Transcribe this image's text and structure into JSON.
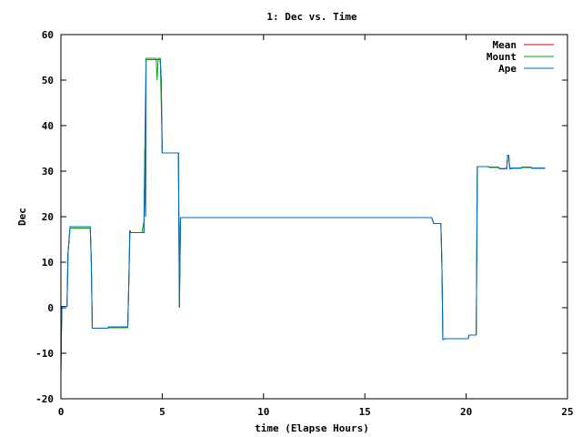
{
  "chart_data": {
    "type": "line",
    "title": "1: Dec vs. Time",
    "xlabel": "time (Elapse Hours)",
    "ylabel": "Dec",
    "xlim": [
      0,
      25
    ],
    "ylim": [
      -20,
      60
    ],
    "xticks": [
      0,
      5,
      10,
      15,
      20,
      25
    ],
    "yticks": [
      -20,
      -10,
      0,
      10,
      20,
      30,
      40,
      50,
      60
    ],
    "grid": false,
    "legend_position": "top-right",
    "series": [
      {
        "name": "Mean",
        "color": "#cc0000",
        "x": [
          0.0,
          0.02,
          0.05,
          0.1,
          0.3,
          0.35,
          0.45,
          1.45,
          1.5,
          1.55,
          2.3,
          2.35,
          3.3,
          3.35,
          3.4,
          3.45,
          3.6,
          4.1,
          4.15,
          4.18,
          4.2,
          4.9,
          4.95,
          5.0,
          5.8,
          5.85,
          5.9,
          5.95,
          18.3,
          18.4,
          18.75,
          18.8,
          18.85,
          18.95,
          20.1,
          20.15,
          20.5,
          20.55,
          21.1,
          21.15,
          21.6,
          21.65,
          22.0,
          22.05,
          22.1,
          22.15,
          22.2,
          22.25,
          22.7,
          22.75,
          23.2,
          23.25,
          23.9
        ],
        "y": [
          -14,
          -7,
          0.3,
          0.3,
          0.3,
          12,
          17.5,
          17.5,
          10,
          -4.5,
          -4.5,
          -4.3,
          -4.3,
          5,
          17,
          16.5,
          16.5,
          16.5,
          35,
          20,
          54.5,
          54.5,
          50,
          34,
          34,
          0,
          19.8,
          19.8,
          19.8,
          18.5,
          18.5,
          10,
          -7,
          -6.8,
          -6.8,
          -6,
          -6,
          31,
          31,
          30.8,
          30.8,
          30.5,
          30.5,
          33.5,
          33.5,
          30.5,
          30.5,
          30.6,
          30.6,
          30.8,
          30.8,
          30.6,
          30.6
        ]
      },
      {
        "name": "Mount",
        "color": "#00aa00",
        "x": [
          0.0,
          0.02,
          0.05,
          0.1,
          0.3,
          0.35,
          0.45,
          1.45,
          1.5,
          1.55,
          2.3,
          2.35,
          3.3,
          3.35,
          3.4,
          3.45,
          3.6,
          4.0,
          4.1,
          4.15,
          4.2,
          4.7,
          4.75,
          4.8,
          4.85,
          4.9,
          4.95,
          5.0,
          5.8,
          5.85,
          5.9,
          5.95,
          18.3,
          18.4,
          18.75,
          18.8,
          18.85,
          18.95,
          20.1,
          20.15,
          20.5,
          20.55,
          21.1,
          21.15,
          21.6,
          21.65,
          22.0,
          22.05,
          22.1,
          22.15,
          22.2,
          22.25,
          22.7,
          22.75,
          23.2,
          23.25,
          23.9
        ],
        "y": [
          -14,
          -7,
          0.3,
          0.3,
          0.3,
          12,
          17.5,
          17.5,
          10,
          -4.5,
          -4.5,
          -4.4,
          -4.4,
          5,
          17,
          16.5,
          16.5,
          16.5,
          19,
          40,
          54.8,
          54.8,
          50,
          54.8,
          54.8,
          54.8,
          45,
          34,
          34,
          0,
          19.8,
          19.8,
          19.8,
          18.5,
          18.5,
          10,
          -7,
          -6.8,
          -6.8,
          -6,
          -6,
          31,
          31,
          30.8,
          30.8,
          30.5,
          30.5,
          33.5,
          33.5,
          30.5,
          30.5,
          30.6,
          30.6,
          30.8,
          30.8,
          30.6,
          30.6
        ]
      },
      {
        "name": "Ape",
        "color": "#0066cc",
        "x": [
          0.0,
          0.02,
          0.05,
          0.1,
          0.3,
          0.35,
          0.45,
          1.45,
          1.5,
          1.55,
          2.3,
          2.35,
          3.3,
          3.35,
          3.4,
          3.45,
          3.6,
          4.1,
          4.15,
          4.18,
          4.2,
          4.9,
          4.95,
          5.0,
          5.8,
          5.85,
          5.9,
          5.95,
          18.3,
          18.4,
          18.75,
          18.8,
          18.85,
          18.95,
          20.1,
          20.15,
          20.5,
          20.55,
          21.1,
          21.15,
          21.6,
          21.65,
          22.0,
          22.05,
          22.1,
          22.15,
          22.2,
          22.25,
          22.7,
          22.75,
          23.2,
          23.25,
          23.9
        ],
        "y": [
          -14,
          -7,
          0.3,
          0.3,
          0.3,
          12,
          17.8,
          17.8,
          10,
          -4.5,
          -4.5,
          -4.2,
          -4.2,
          5,
          17,
          16.5,
          16.5,
          16.5,
          35,
          20,
          54.5,
          54.5,
          50,
          34,
          34,
          0,
          19.8,
          19.8,
          19.8,
          18.5,
          18.5,
          10,
          -7,
          -6.8,
          -6.8,
          -6,
          -6,
          31,
          31,
          30.9,
          30.9,
          30.6,
          30.6,
          33.5,
          33.5,
          30.6,
          30.6,
          30.7,
          30.7,
          30.9,
          30.9,
          30.7,
          30.7
        ]
      }
    ]
  }
}
